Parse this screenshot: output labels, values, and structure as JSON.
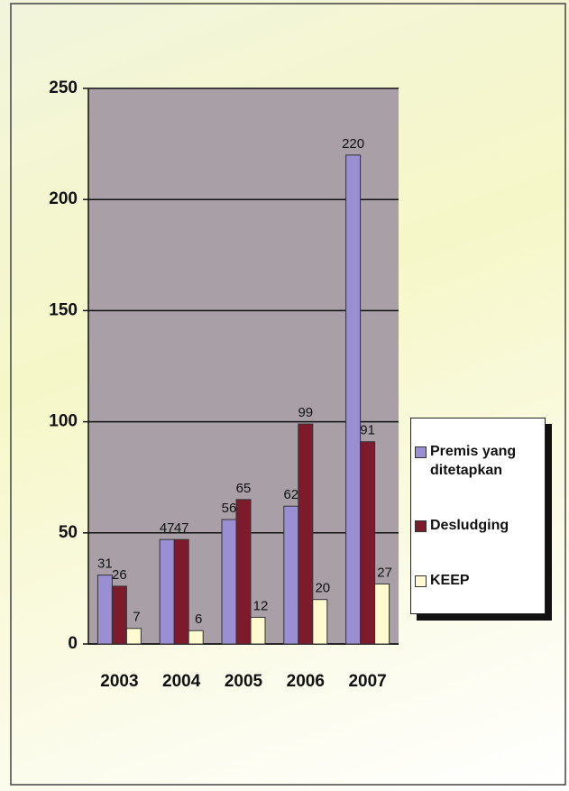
{
  "chart_data": {
    "type": "bar",
    "categories": [
      "2003",
      "2004",
      "2005",
      "2006",
      "2007"
    ],
    "series": [
      {
        "name": "Premis yang ditetapkan",
        "color": "#9b8fd3",
        "values": [
          31,
          47,
          56,
          62,
          220
        ]
      },
      {
        "name": "Desludging",
        "color": "#7d1a2c",
        "values": [
          26,
          47,
          65,
          99,
          91
        ]
      },
      {
        "name": "KEEP",
        "color": "#fffbd0",
        "values": [
          7,
          6,
          12,
          20,
          27
        ]
      }
    ],
    "ylim": [
      0,
      250
    ],
    "yticks": [
      0,
      50,
      100,
      150,
      200,
      250
    ],
    "grid": true,
    "legend": "right"
  }
}
